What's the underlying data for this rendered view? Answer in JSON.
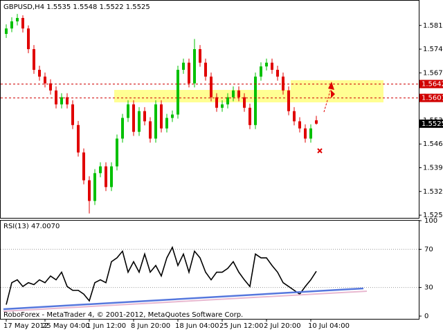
{
  "chart_data": {
    "type": "candlestick",
    "title": "GBPUSD,H4 1.5535 1.5548 1.5522 1.5525",
    "categories": [
      "17 May 2012",
      null,
      null,
      null,
      null,
      null,
      null,
      "25 May 04:00",
      null,
      null,
      null,
      null,
      null,
      null,
      null,
      "1 Jun 12:00",
      null,
      null,
      null,
      null,
      null,
      null,
      null,
      "8 Jun 20:00",
      null,
      null,
      null,
      null,
      null,
      null,
      null,
      "18 Jun 04:00",
      null,
      null,
      null,
      null,
      null,
      null,
      null,
      "25 Jun 12:00",
      null,
      null,
      null,
      null,
      null,
      null,
      null,
      "2 Jul 20:00",
      null,
      null,
      null,
      null,
      null,
      null,
      null,
      "10 Jul 04:00",
      null
    ],
    "open": [
      1.579,
      1.5806,
      1.5827,
      1.5837,
      1.5806,
      1.5745,
      1.5684,
      1.5664,
      1.5644,
      1.5623,
      1.5582,
      1.5603,
      1.5582,
      1.5521,
      1.544,
      1.5358,
      1.5297,
      1.5379,
      1.5399,
      1.5338,
      1.5399,
      1.5481,
      1.5542,
      1.5582,
      1.5501,
      1.5562,
      1.5532,
      1.5481,
      1.5582,
      1.5511,
      1.5542,
      1.5552,
      1.5684,
      1.5705,
      1.5644,
      1.5745,
      1.5705,
      1.5664,
      1.5603,
      1.5572,
      1.5582,
      1.5603,
      1.5623,
      1.5603,
      1.5572,
      1.5521,
      1.5664,
      1.5694,
      1.5705,
      1.5684,
      1.5664,
      1.5623,
      1.5562,
      1.5532,
      1.5511,
      1.5481,
      1.5535
    ],
    "high": [
      1.5818,
      1.5839,
      1.5849,
      1.5845,
      1.5815,
      1.5757,
      1.5696,
      1.5676,
      1.5656,
      1.5635,
      1.5615,
      1.5615,
      1.5594,
      1.5533,
      1.5452,
      1.537,
      1.5391,
      1.5411,
      1.5411,
      1.5411,
      1.5493,
      1.5554,
      1.5594,
      1.5594,
      1.5574,
      1.5574,
      1.5544,
      1.5594,
      1.5594,
      1.5554,
      1.5564,
      1.5696,
      1.5717,
      1.5717,
      1.5775,
      1.5757,
      1.5717,
      1.5676,
      1.5615,
      1.5594,
      1.5615,
      1.5635,
      1.5635,
      1.5615,
      1.5584,
      1.5676,
      1.5706,
      1.5717,
      1.5717,
      1.5696,
      1.5676,
      1.5635,
      1.5574,
      1.5544,
      1.5523,
      1.5523,
      1.5548
    ],
    "low": [
      1.5778,
      1.5795,
      1.5815,
      1.5794,
      1.5733,
      1.5672,
      1.5652,
      1.5632,
      1.5611,
      1.557,
      1.557,
      1.557,
      1.5509,
      1.5428,
      1.5346,
      1.526,
      1.5285,
      1.5367,
      1.5326,
      1.5326,
      1.5387,
      1.5469,
      1.553,
      1.5489,
      1.5489,
      1.552,
      1.5469,
      1.5469,
      1.5499,
      1.5499,
      1.553,
      1.554,
      1.5672,
      1.5632,
      1.5632,
      1.5693,
      1.5652,
      1.5591,
      1.556,
      1.556,
      1.557,
      1.5591,
      1.5591,
      1.556,
      1.5509,
      1.5509,
      1.5652,
      1.5682,
      1.5672,
      1.5652,
      1.5611,
      1.555,
      1.552,
      1.5499,
      1.5469,
      1.5469,
      1.5522
    ],
    "close": [
      1.5806,
      1.5827,
      1.5837,
      1.5806,
      1.5745,
      1.5684,
      1.5664,
      1.5644,
      1.5623,
      1.5582,
      1.5603,
      1.5582,
      1.5521,
      1.544,
      1.5358,
      1.5297,
      1.5379,
      1.5399,
      1.5338,
      1.5399,
      1.5481,
      1.5542,
      1.5582,
      1.5501,
      1.5562,
      1.5532,
      1.5481,
      1.5582,
      1.5511,
      1.5542,
      1.5552,
      1.5684,
      1.5705,
      1.5644,
      1.5745,
      1.5705,
      1.5664,
      1.5603,
      1.5572,
      1.5582,
      1.5603,
      1.5623,
      1.5603,
      1.5572,
      1.5521,
      1.5664,
      1.5694,
      1.5705,
      1.5684,
      1.5664,
      1.5623,
      1.5562,
      1.5532,
      1.5511,
      1.5481,
      1.5511,
      1.5525
    ],
    "up_color": "#00c000",
    "down_color": "#e00000",
    "ylim": [
      1.5247,
      1.5888
    ],
    "yticks": [
      1.5255,
      1.5325,
      1.5395,
      1.5465,
      1.5535,
      1.5605,
      1.5675,
      1.5745,
      1.5815
    ],
    "levels": [
      1.5642,
      1.5601
    ],
    "level_color": "#d00000",
    "last_price": 1.5525,
    "rsi": {
      "title": "RSI(13) 47.0070",
      "values": [
        12,
        35,
        38,
        31,
        35,
        33,
        38,
        35,
        42,
        38,
        46,
        31,
        27,
        27,
        23,
        16,
        35,
        38,
        35,
        57,
        61,
        68,
        46,
        57,
        46,
        65,
        46,
        53,
        42,
        61,
        72,
        53,
        65,
        46,
        68,
        61,
        46,
        38,
        46,
        46,
        50,
        57,
        46,
        38,
        31,
        65,
        61,
        61,
        53,
        46,
        35,
        31,
        27,
        23,
        31,
        38,
        47.007
      ],
      "color": "#000000",
      "ylim": [
        0,
        100
      ],
      "yticks": [
        0,
        30,
        70,
        100
      ]
    },
    "footer": "RoboForex - MetaTrader 4, © 2001-2012, MetaQuotes Software Corp."
  }
}
